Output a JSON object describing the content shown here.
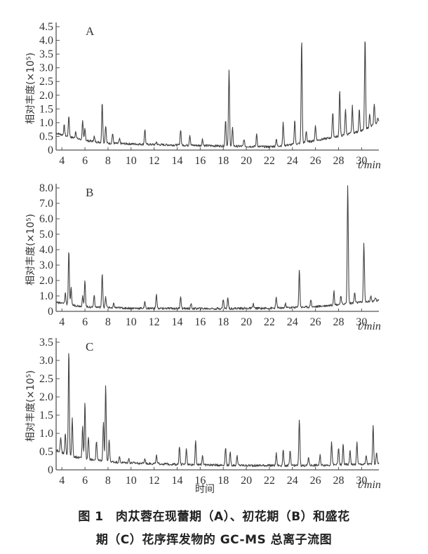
{
  "caption": {
    "line1": "图 1　肉苁蓉在现蕾期（A）、初花期（B）和盛花",
    "line2": "期（C）花序挥发物的 GC-MS 总离子流图"
  },
  "chart_data": [
    {
      "type": "line",
      "panel_label": "A",
      "ylabel": "相对丰度(×10⁵)",
      "xunit": "t/min",
      "xlabel_extra": "",
      "xlim": [
        3.5,
        31.5
      ],
      "ylim": [
        0,
        4.5
      ],
      "x_ticks": [
        4,
        6,
        8,
        10,
        12,
        14,
        16,
        18,
        20,
        22,
        24,
        26,
        28,
        30
      ],
      "y_ticks": [
        0,
        0.5,
        1.0,
        1.5,
        2.0,
        2.5,
        3.0,
        3.5,
        4.0,
        4.5
      ],
      "y_tick_labels": [
        "0",
        "0.5",
        "1.0",
        "1.5",
        "2.0",
        "2.5",
        "3.0",
        "3.5",
        "4.0",
        "4.5"
      ],
      "baseline": [
        [
          3.5,
          0.62
        ],
        [
          4.5,
          0.5
        ],
        [
          6,
          0.35
        ],
        [
          8,
          0.25
        ],
        [
          12,
          0.2
        ],
        [
          18,
          0.15
        ],
        [
          22,
          0.12
        ],
        [
          24,
          0.2
        ],
        [
          26,
          0.35
        ],
        [
          28,
          0.5
        ],
        [
          30,
          0.7
        ],
        [
          31.5,
          1.0
        ]
      ],
      "peaks": [
        {
          "x": 4.2,
          "y": 0.9
        },
        {
          "x": 4.6,
          "y": 1.25
        },
        {
          "x": 5.2,
          "y": 0.7
        },
        {
          "x": 5.8,
          "y": 1.05
        },
        {
          "x": 6.0,
          "y": 0.8
        },
        {
          "x": 6.8,
          "y": 0.5
        },
        {
          "x": 7.5,
          "y": 1.75
        },
        {
          "x": 7.8,
          "y": 0.9
        },
        {
          "x": 8.4,
          "y": 0.6
        },
        {
          "x": 9.0,
          "y": 0.4
        },
        {
          "x": 11.2,
          "y": 0.75
        },
        {
          "x": 12.2,
          "y": 0.3
        },
        {
          "x": 14.3,
          "y": 0.75
        },
        {
          "x": 15.1,
          "y": 0.55
        },
        {
          "x": 16.2,
          "y": 0.4
        },
        {
          "x": 18.2,
          "y": 1.1
        },
        {
          "x": 18.5,
          "y": 2.9
        },
        {
          "x": 18.8,
          "y": 0.8
        },
        {
          "x": 19.8,
          "y": 0.4
        },
        {
          "x": 20.9,
          "y": 0.6
        },
        {
          "x": 22.6,
          "y": 0.4
        },
        {
          "x": 23.2,
          "y": 1.0
        },
        {
          "x": 24.2,
          "y": 1.1
        },
        {
          "x": 24.8,
          "y": 4.05
        },
        {
          "x": 25.2,
          "y": 0.7
        },
        {
          "x": 26.0,
          "y": 0.9
        },
        {
          "x": 27.5,
          "y": 1.4
        },
        {
          "x": 28.1,
          "y": 2.2
        },
        {
          "x": 28.6,
          "y": 1.5
        },
        {
          "x": 29.2,
          "y": 1.6
        },
        {
          "x": 29.8,
          "y": 1.5
        },
        {
          "x": 30.3,
          "y": 4.1
        },
        {
          "x": 30.7,
          "y": 1.3
        },
        {
          "x": 31.1,
          "y": 1.7
        },
        {
          "x": 31.4,
          "y": 1.2
        }
      ]
    },
    {
      "type": "line",
      "panel_label": "B",
      "ylabel": "相对丰度(×10⁵)",
      "xunit": "t/min",
      "xlabel_extra": "",
      "xlim": [
        3.5,
        31.5
      ],
      "ylim": [
        0,
        8.0
      ],
      "x_ticks": [
        4,
        6,
        8,
        10,
        12,
        14,
        16,
        18,
        20,
        22,
        24,
        26,
        28,
        30
      ],
      "y_ticks": [
        0,
        1.0,
        2.0,
        3.0,
        4.0,
        5.0,
        6.0,
        7.0,
        8.0
      ],
      "y_tick_labels": [
        "0",
        "1.0",
        "2.0",
        "3.0",
        "4.0",
        "5.0",
        "6.0",
        "7.0",
        "8.0"
      ],
      "baseline": [
        [
          3.5,
          0.6
        ],
        [
          4.5,
          0.45
        ],
        [
          6,
          0.3
        ],
        [
          10,
          0.2
        ],
        [
          16,
          0.18
        ],
        [
          22,
          0.2
        ],
        [
          26,
          0.3
        ],
        [
          28,
          0.45
        ],
        [
          31.5,
          0.7
        ]
      ],
      "peaks": [
        {
          "x": 4.3,
          "y": 1.2
        },
        {
          "x": 4.6,
          "y": 3.95
        },
        {
          "x": 4.8,
          "y": 1.5
        },
        {
          "x": 5.8,
          "y": 1.0
        },
        {
          "x": 6.0,
          "y": 2.0
        },
        {
          "x": 6.8,
          "y": 1.1
        },
        {
          "x": 7.5,
          "y": 2.5
        },
        {
          "x": 7.8,
          "y": 0.9
        },
        {
          "x": 8.5,
          "y": 0.5
        },
        {
          "x": 11.2,
          "y": 0.6
        },
        {
          "x": 12.2,
          "y": 1.1
        },
        {
          "x": 14.3,
          "y": 1.0
        },
        {
          "x": 15.2,
          "y": 0.5
        },
        {
          "x": 18.0,
          "y": 0.8
        },
        {
          "x": 18.4,
          "y": 0.9
        },
        {
          "x": 20.6,
          "y": 0.5
        },
        {
          "x": 22.6,
          "y": 0.9
        },
        {
          "x": 23.4,
          "y": 0.5
        },
        {
          "x": 24.6,
          "y": 2.7
        },
        {
          "x": 25.6,
          "y": 0.8
        },
        {
          "x": 27.6,
          "y": 1.3
        },
        {
          "x": 28.2,
          "y": 1.0
        },
        {
          "x": 28.8,
          "y": 8.2
        },
        {
          "x": 29.4,
          "y": 1.2
        },
        {
          "x": 30.2,
          "y": 4.4
        },
        {
          "x": 30.8,
          "y": 1.0
        },
        {
          "x": 31.2,
          "y": 0.9
        }
      ]
    },
    {
      "type": "line",
      "panel_label": "C",
      "ylabel": "相对丰度(×10⁵)",
      "xunit": "t/min",
      "xlabel_extra": "时间",
      "xlim": [
        3.5,
        31.5
      ],
      "ylim": [
        0,
        3.5
      ],
      "x_ticks": [
        4,
        6,
        8,
        10,
        12,
        14,
        16,
        18,
        20,
        22,
        24,
        26,
        28,
        30
      ],
      "y_ticks": [
        0,
        0.5,
        1.0,
        1.5,
        2.0,
        2.5,
        3.0,
        3.5
      ],
      "y_tick_labels": [
        "0",
        "0.5",
        "1.0",
        "1.5",
        "2.0",
        "2.5",
        "3.0",
        "3.5"
      ],
      "baseline": [
        [
          3.5,
          0.55
        ],
        [
          4.5,
          0.4
        ],
        [
          6,
          0.3
        ],
        [
          9,
          0.2
        ],
        [
          14,
          0.15
        ],
        [
          20,
          0.12
        ],
        [
          25,
          0.12
        ],
        [
          28,
          0.14
        ],
        [
          31.5,
          0.16
        ]
      ],
      "peaks": [
        {
          "x": 3.9,
          "y": 0.9
        },
        {
          "x": 4.3,
          "y": 1.0
        },
        {
          "x": 4.6,
          "y": 3.3
        },
        {
          "x": 4.9,
          "y": 1.4
        },
        {
          "x": 5.8,
          "y": 1.2
        },
        {
          "x": 6.0,
          "y": 1.85
        },
        {
          "x": 6.3,
          "y": 0.9
        },
        {
          "x": 7.0,
          "y": 0.8
        },
        {
          "x": 7.6,
          "y": 1.3
        },
        {
          "x": 7.8,
          "y": 2.3
        },
        {
          "x": 8.1,
          "y": 0.8
        },
        {
          "x": 9.0,
          "y": 0.35
        },
        {
          "x": 9.8,
          "y": 0.3
        },
        {
          "x": 11.2,
          "y": 0.3
        },
        {
          "x": 12.2,
          "y": 0.4
        },
        {
          "x": 14.2,
          "y": 0.65
        },
        {
          "x": 14.8,
          "y": 0.6
        },
        {
          "x": 15.6,
          "y": 0.8
        },
        {
          "x": 16.2,
          "y": 0.4
        },
        {
          "x": 18.2,
          "y": 0.6
        },
        {
          "x": 18.6,
          "y": 0.5
        },
        {
          "x": 19.2,
          "y": 0.4
        },
        {
          "x": 22.6,
          "y": 0.45
        },
        {
          "x": 23.2,
          "y": 0.55
        },
        {
          "x": 23.8,
          "y": 0.5
        },
        {
          "x": 24.6,
          "y": 1.4
        },
        {
          "x": 25.4,
          "y": 0.35
        },
        {
          "x": 26.4,
          "y": 0.4
        },
        {
          "x": 27.4,
          "y": 0.75
        },
        {
          "x": 28.0,
          "y": 0.6
        },
        {
          "x": 28.4,
          "y": 0.7
        },
        {
          "x": 29.0,
          "y": 0.55
        },
        {
          "x": 29.6,
          "y": 0.75
        },
        {
          "x": 30.4,
          "y": 0.4
        },
        {
          "x": 31.0,
          "y": 1.25
        },
        {
          "x": 31.3,
          "y": 0.5
        }
      ]
    }
  ]
}
